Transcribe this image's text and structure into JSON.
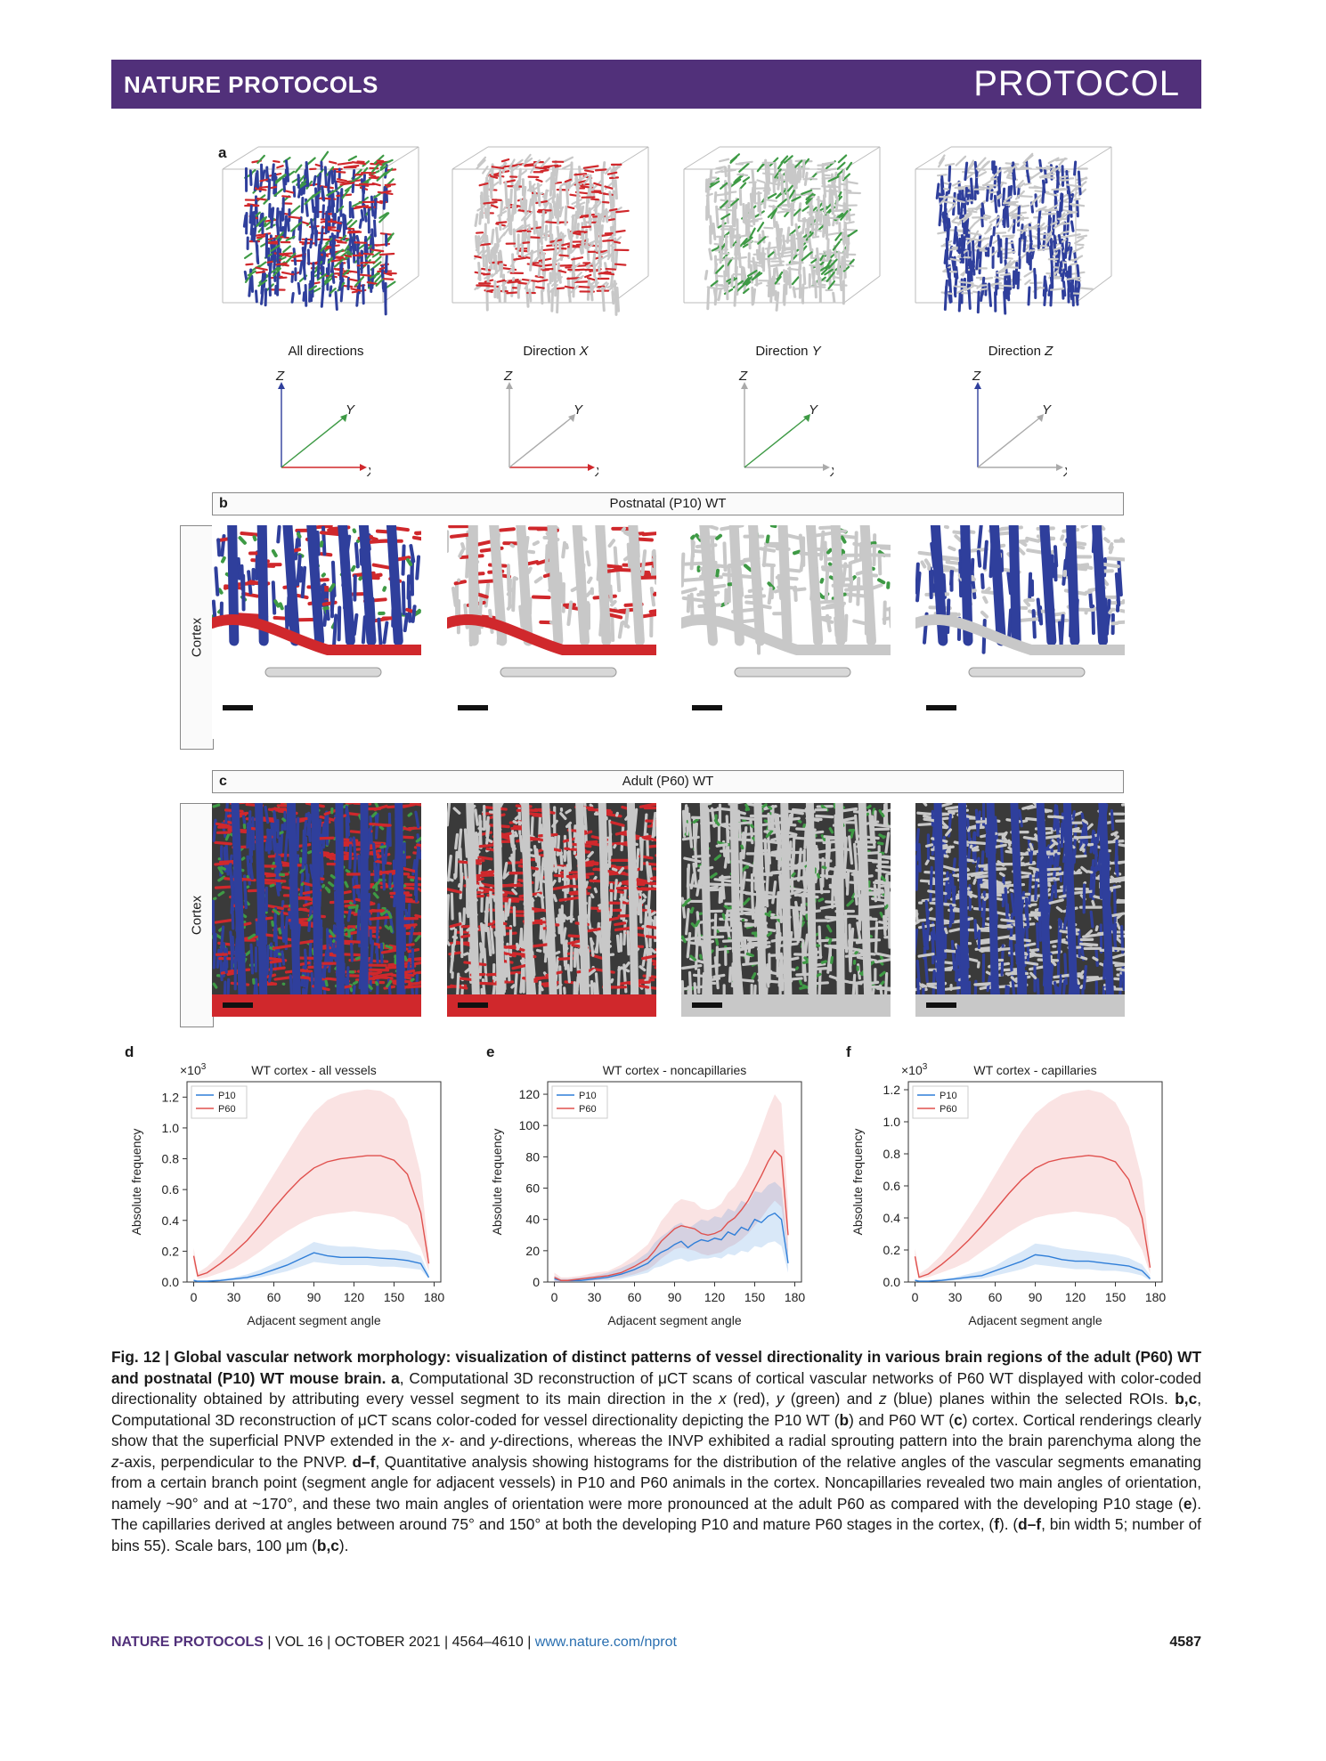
{
  "header": {
    "journal": "NATURE PROTOCOLS",
    "section": "PROTOCOL"
  },
  "panel_a": {
    "label": "a",
    "views": [
      {
        "caption": "All directions",
        "axes": {
          "z": "Z",
          "y": "Y",
          "x": "X"
        },
        "scheme": "all"
      },
      {
        "caption_prefix": "Direction ",
        "caption_axis": "X",
        "axes": {
          "z": "Z",
          "y": "Y",
          "x": "X"
        },
        "scheme": "x"
      },
      {
        "caption_prefix": "Direction ",
        "caption_axis": "Y",
        "axes": {
          "z": "Z",
          "y": "Y",
          "x": "X"
        },
        "scheme": "y"
      },
      {
        "caption_prefix": "Direction ",
        "caption_axis": "Z",
        "axes": {
          "z": "Z",
          "y": "Y",
          "x": "X"
        },
        "scheme": "z"
      }
    ]
  },
  "panel_b": {
    "label": "b",
    "title": "Postnatal (P10) WT",
    "side_label": "Cortex"
  },
  "panel_c": {
    "label": "c",
    "title": "Adult (P60) WT",
    "side_label": "Cortex"
  },
  "colors": {
    "x": "#d0282c",
    "y": "#3e9a45",
    "z": "#2f3f9c",
    "vessel": "#c8c8c8",
    "p10": "#2f7ed8",
    "p60": "#e0514e",
    "banner": "#51307a"
  },
  "chart_data": [
    {
      "panel": "d",
      "type": "line",
      "title": "WT cortex - all vessels",
      "xlabel": "Adjacent segment angle",
      "ylabel": "Absolute frequency",
      "multiplier": "×10",
      "multiplier_exp": "3",
      "xticks": [
        0,
        30,
        60,
        90,
        120,
        150,
        180
      ],
      "yticks": [
        "0.0",
        "0.2",
        "0.4",
        "0.6",
        "0.8",
        "1.0",
        "1.2"
      ],
      "xlim": [
        -5,
        185
      ],
      "ylim": [
        0,
        1.3
      ],
      "legend_position": "top-left",
      "series": [
        {
          "name": "P10",
          "x": [
            0,
            3,
            10,
            20,
            30,
            40,
            50,
            60,
            70,
            80,
            90,
            100,
            110,
            120,
            130,
            140,
            150,
            160,
            170,
            176
          ],
          "y": [
            0.01,
            0.005,
            0.005,
            0.01,
            0.02,
            0.03,
            0.05,
            0.08,
            0.11,
            0.15,
            0.19,
            0.17,
            0.16,
            0.16,
            0.16,
            0.155,
            0.15,
            0.14,
            0.12,
            0.03
          ],
          "lower": [
            0.0,
            0.0,
            0.0,
            0.005,
            0.01,
            0.015,
            0.03,
            0.05,
            0.07,
            0.1,
            0.13,
            0.12,
            0.11,
            0.11,
            0.11,
            0.1,
            0.1,
            0.09,
            0.08,
            0.02
          ],
          "upper": [
            0.02,
            0.01,
            0.01,
            0.02,
            0.03,
            0.05,
            0.08,
            0.12,
            0.16,
            0.21,
            0.26,
            0.24,
            0.23,
            0.23,
            0.22,
            0.21,
            0.21,
            0.2,
            0.17,
            0.05
          ]
        },
        {
          "name": "P60",
          "x": [
            0,
            3,
            10,
            20,
            30,
            40,
            50,
            60,
            70,
            80,
            90,
            100,
            110,
            120,
            130,
            140,
            150,
            160,
            170,
            176
          ],
          "y": [
            0.17,
            0.04,
            0.06,
            0.12,
            0.19,
            0.27,
            0.37,
            0.48,
            0.58,
            0.67,
            0.74,
            0.78,
            0.8,
            0.81,
            0.82,
            0.82,
            0.79,
            0.7,
            0.45,
            0.12
          ],
          "lower": [
            0.12,
            0.02,
            0.03,
            0.06,
            0.09,
            0.14,
            0.2,
            0.27,
            0.33,
            0.38,
            0.42,
            0.44,
            0.45,
            0.46,
            0.45,
            0.44,
            0.42,
            0.37,
            0.22,
            0.07
          ],
          "upper": [
            0.22,
            0.06,
            0.1,
            0.18,
            0.3,
            0.42,
            0.56,
            0.7,
            0.84,
            0.98,
            1.1,
            1.18,
            1.22,
            1.24,
            1.25,
            1.24,
            1.19,
            1.05,
            0.7,
            0.18
          ]
        }
      ]
    },
    {
      "panel": "e",
      "type": "line",
      "title": "WT cortex - noncapillaries",
      "xlabel": "Adjacent segment angle",
      "ylabel": "Absolute frequency",
      "xticks": [
        0,
        30,
        60,
        90,
        120,
        150,
        180
      ],
      "yticks": [
        "0",
        "20",
        "40",
        "60",
        "80",
        "100",
        "120"
      ],
      "xlim": [
        -5,
        185
      ],
      "ylim": [
        0,
        128
      ],
      "legend_position": "top-left",
      "series": [
        {
          "name": "P10",
          "x": [
            0,
            5,
            10,
            20,
            30,
            40,
            50,
            60,
            70,
            75,
            80,
            85,
            90,
            95,
            100,
            105,
            110,
            115,
            120,
            125,
            130,
            135,
            140,
            145,
            150,
            155,
            160,
            165,
            170,
            175
          ],
          "y": [
            2,
            1,
            1,
            1,
            2,
            3,
            5,
            8,
            12,
            16,
            19,
            21,
            24,
            26,
            22,
            25,
            27,
            26,
            28,
            27,
            32,
            30,
            35,
            33,
            40,
            38,
            42,
            44,
            40,
            12
          ],
          "lower": [
            0,
            0,
            0,
            0,
            1,
            1,
            2,
            4,
            6,
            9,
            10,
            12,
            14,
            15,
            13,
            14,
            15,
            15,
            16,
            15,
            18,
            17,
            20,
            19,
            23,
            22,
            25,
            26,
            23,
            6
          ],
          "upper": [
            4,
            2,
            2,
            3,
            4,
            6,
            9,
            13,
            19,
            25,
            29,
            32,
            36,
            38,
            34,
            37,
            40,
            39,
            42,
            41,
            47,
            45,
            52,
            50,
            58,
            57,
            62,
            64,
            60,
            20
          ]
        },
        {
          "name": "P60",
          "x": [
            0,
            5,
            10,
            20,
            30,
            40,
            50,
            60,
            70,
            75,
            80,
            85,
            90,
            95,
            100,
            105,
            110,
            115,
            120,
            125,
            130,
            135,
            140,
            145,
            150,
            155,
            160,
            165,
            170,
            175
          ],
          "y": [
            3,
            1,
            1,
            2,
            3,
            4,
            6,
            10,
            15,
            20,
            26,
            30,
            34,
            36,
            35,
            34,
            31,
            30,
            31,
            33,
            38,
            41,
            46,
            52,
            60,
            68,
            77,
            84,
            80,
            30
          ],
          "lower": [
            0,
            0,
            0,
            1,
            1,
            2,
            3,
            5,
            8,
            11,
            15,
            18,
            21,
            22,
            21,
            20,
            18,
            17,
            18,
            19,
            22,
            24,
            27,
            31,
            36,
            41,
            47,
            52,
            48,
            16
          ],
          "upper": [
            6,
            3,
            3,
            4,
            6,
            7,
            11,
            17,
            24,
            31,
            39,
            44,
            50,
            53,
            52,
            51,
            47,
            46,
            47,
            50,
            57,
            61,
            68,
            76,
            87,
            98,
            110,
            120,
            114,
            48
          ]
        }
      ]
    },
    {
      "panel": "f",
      "type": "line",
      "title": "WT cortex - capillaries",
      "xlabel": "Adjacent segment angle",
      "ylabel": "Absolute frequency",
      "multiplier": "×10",
      "multiplier_exp": "3",
      "xticks": [
        0,
        30,
        60,
        90,
        120,
        150,
        180
      ],
      "yticks": [
        "0.0",
        "0.2",
        "0.4",
        "0.6",
        "0.8",
        "1.0",
        "1.2"
      ],
      "xlim": [
        -5,
        185
      ],
      "ylim": [
        0,
        1.25
      ],
      "legend_position": "top-left",
      "series": [
        {
          "name": "P10",
          "x": [
            0,
            3,
            10,
            20,
            30,
            40,
            50,
            60,
            70,
            80,
            90,
            100,
            110,
            120,
            130,
            140,
            150,
            160,
            170,
            176
          ],
          "y": [
            0.01,
            0.005,
            0.005,
            0.01,
            0.02,
            0.03,
            0.04,
            0.07,
            0.1,
            0.13,
            0.17,
            0.16,
            0.14,
            0.13,
            0.13,
            0.12,
            0.11,
            0.1,
            0.07,
            0.02
          ],
          "lower": [
            0.0,
            0.0,
            0.0,
            0.005,
            0.01,
            0.015,
            0.02,
            0.04,
            0.06,
            0.08,
            0.11,
            0.1,
            0.09,
            0.08,
            0.08,
            0.07,
            0.07,
            0.06,
            0.04,
            0.01
          ],
          "upper": [
            0.02,
            0.01,
            0.01,
            0.02,
            0.03,
            0.05,
            0.07,
            0.1,
            0.15,
            0.19,
            0.24,
            0.23,
            0.21,
            0.2,
            0.19,
            0.18,
            0.17,
            0.15,
            0.11,
            0.04
          ]
        },
        {
          "name": "P60",
          "x": [
            0,
            3,
            10,
            20,
            30,
            40,
            50,
            60,
            70,
            80,
            90,
            100,
            110,
            120,
            130,
            140,
            150,
            160,
            170,
            176
          ],
          "y": [
            0.16,
            0.03,
            0.05,
            0.11,
            0.18,
            0.26,
            0.35,
            0.45,
            0.55,
            0.64,
            0.71,
            0.75,
            0.77,
            0.78,
            0.79,
            0.78,
            0.75,
            0.64,
            0.4,
            0.09
          ],
          "lower": [
            0.11,
            0.02,
            0.03,
            0.06,
            0.09,
            0.13,
            0.19,
            0.25,
            0.31,
            0.36,
            0.4,
            0.42,
            0.43,
            0.44,
            0.43,
            0.42,
            0.4,
            0.34,
            0.2,
            0.05
          ],
          "upper": [
            0.21,
            0.05,
            0.09,
            0.17,
            0.28,
            0.4,
            0.53,
            0.67,
            0.81,
            0.94,
            1.05,
            1.12,
            1.17,
            1.19,
            1.2,
            1.18,
            1.12,
            0.97,
            0.64,
            0.15
          ]
        }
      ]
    }
  ],
  "caption": {
    "fig_label": "Fig. 12 | ",
    "title": "Global vascular network morphology: visualization of distinct patterns of vessel directionality in various brain regions of the adult (P60) WT and postnatal (P10) WT mouse brain.",
    "p_a_label": "a",
    "p_a_text": ", Computational 3D reconstruction of μCT scans of cortical vascular networks of P60 WT displayed with color-coded directionality obtained by attributing every vessel segment to its main direction in the ",
    "x_italic": "x",
    "p_a_text2": " (red), ",
    "y_italic": "y",
    "p_a_text3": " (green) and ",
    "z_italic": "z",
    "p_a_text4": " (blue) planes within the selected ROIs. ",
    "p_bc_label": "b,c",
    "p_bc_text": ", Computational 3D reconstruction of μCT scans color-coded for vessel directionality depicting the P10 WT (",
    "b_ref": "b",
    "p_bc_text2": ") and P60 WT (",
    "c_ref": "c",
    "p_bc_text3": ") cortex. Cortical renderings clearly show that the superficial PNVP extended in the ",
    "x2": "x",
    "p_bc_text4": "- and ",
    "y2": "y",
    "p_bc_text5": "-directions, whereas the INVP exhibited a radial sprouting pattern into the brain parenchyma along the ",
    "z2": "z",
    "p_bc_text6": "-axis, perpendicular to the PNVP. ",
    "p_df_label": "d–f",
    "p_df_text": ", Quantitative analysis showing histograms for the distribution of the relative angles of the vascular segments emanating from a certain branch point (segment angle for adjacent vessels) in P10 and P60 animals in the cortex. Noncapillaries revealed two main angles of orientation, namely ~90° and at ~170°, and these two main angles of orientation were more pronounced at the adult P60 as compared with the developing P10 stage (",
    "e_ref": "e",
    "p_df_text2": "). The capillaries derived at angles between around 75° and 150° at both the developing P10 and mature P60 stages in the cortex, (",
    "f_ref": "f",
    "p_df_text3": "). (",
    "df_ref": "d–f",
    "p_df_text4": ", bin width 5; number of bins 55). Scale bars, 100 μm (",
    "bc_ref": "b,c",
    "p_df_text5": ")."
  },
  "footer": {
    "journal": "NATURE PROTOCOLS",
    "sep1": " | ",
    "vol": "VOL 16",
    "sep2": " | ",
    "date": "OCTOBER 2021",
    "sep3": " | ",
    "pages": "4564–4610",
    "sep4": " | ",
    "url": "www.nature.com/nprot",
    "page": "4587"
  }
}
